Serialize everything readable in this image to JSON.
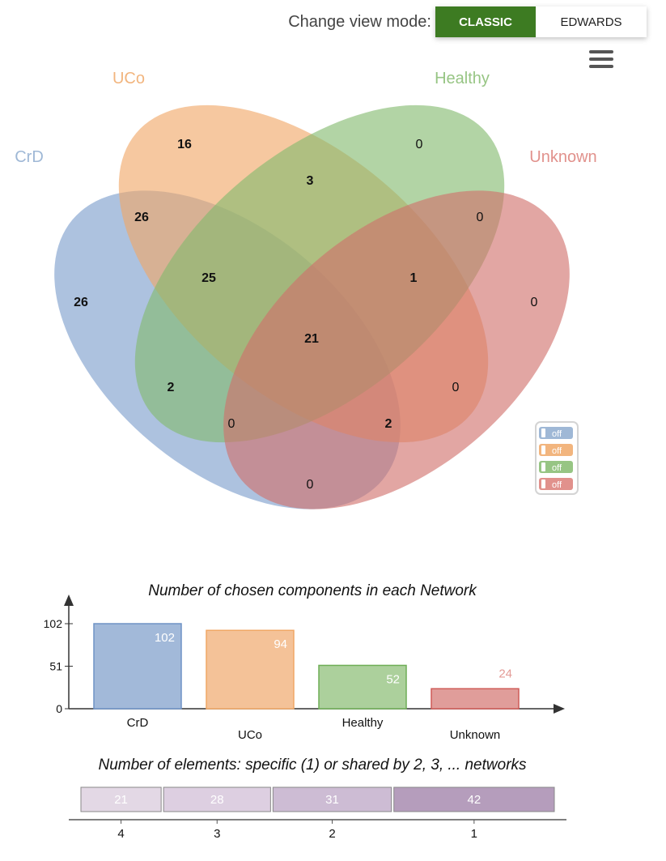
{
  "header": {
    "view_mode_label": "Change view mode:",
    "modes": [
      "CLASSIC",
      "EDWARDS"
    ],
    "active_mode": "CLASSIC",
    "active_color": "#3d7b22"
  },
  "menu": {
    "icon": "hamburger-menu-icon"
  },
  "venn": {
    "sets": [
      {
        "name": "CrD",
        "color": "#7a9ccb",
        "label_color": "#9fb8d6"
      },
      {
        "name": "UCo",
        "color": "#f0a766",
        "label_color": "#f2b57e"
      },
      {
        "name": "Healthy",
        "color": "#83b96e",
        "label_color": "#97c584"
      },
      {
        "name": "Unknown",
        "color": "#d16f6a",
        "label_color": "#e1918c"
      }
    ],
    "regions": [
      {
        "id": "uco-only",
        "value": "16",
        "bold": true
      },
      {
        "id": "healthy-only",
        "value": "0",
        "bold": false
      },
      {
        "id": "uco-healthy",
        "value": "3",
        "bold": true
      },
      {
        "id": "crd-uco",
        "value": "26",
        "bold": true
      },
      {
        "id": "healthy-unknown",
        "value": "0",
        "bold": false
      },
      {
        "id": "crd-only",
        "value": "26",
        "bold": true
      },
      {
        "id": "crd-uco-healthy",
        "value": "25",
        "bold": true
      },
      {
        "id": "uco-healthy-unknown",
        "value": "1",
        "bold": true
      },
      {
        "id": "unknown-only",
        "value": "0",
        "bold": false
      },
      {
        "id": "all-four",
        "value": "21",
        "bold": true
      },
      {
        "id": "crd-healthy",
        "value": "2",
        "bold": true
      },
      {
        "id": "uco-unknown",
        "value": "0",
        "bold": false
      },
      {
        "id": "crd-healthy-unknown",
        "value": "0",
        "bold": false
      },
      {
        "id": "crd-uco-unknown",
        "value": "2",
        "bold": true
      },
      {
        "id": "crd-unknown",
        "value": "0",
        "bold": false
      }
    ],
    "toggles": [
      "off",
      "off",
      "off",
      "off"
    ]
  },
  "chart_data": [
    {
      "type": "bar",
      "title": "Number of chosen components in each Network",
      "categories": [
        "CrD",
        "UCo",
        "Healthy",
        "Unknown"
      ],
      "values": [
        102,
        94,
        52,
        24
      ],
      "colors": [
        "#a2b9d9",
        "#f4c298",
        "#acd09c",
        "#e09d9a"
      ],
      "border_colors": [
        "#6f93c6",
        "#f0a766",
        "#6fae56",
        "#cf5b58"
      ],
      "label_colors": [
        "#ffffff",
        "#ffffff",
        "#ffffff",
        "#e39b96"
      ],
      "yticks": [
        0,
        51,
        102
      ],
      "ylim": [
        0,
        102
      ]
    },
    {
      "type": "bar",
      "title": "Number of elements: specific (1) or shared by 2, 3, ... networks",
      "orientation": "horizontal-stacked",
      "categories": [
        "4",
        "3",
        "2",
        "1"
      ],
      "values": [
        21,
        28,
        31,
        42
      ],
      "colors": [
        "#e3d8e5",
        "#ddcfe1",
        "#cdbcd4",
        "#b59dbc"
      ]
    }
  ]
}
